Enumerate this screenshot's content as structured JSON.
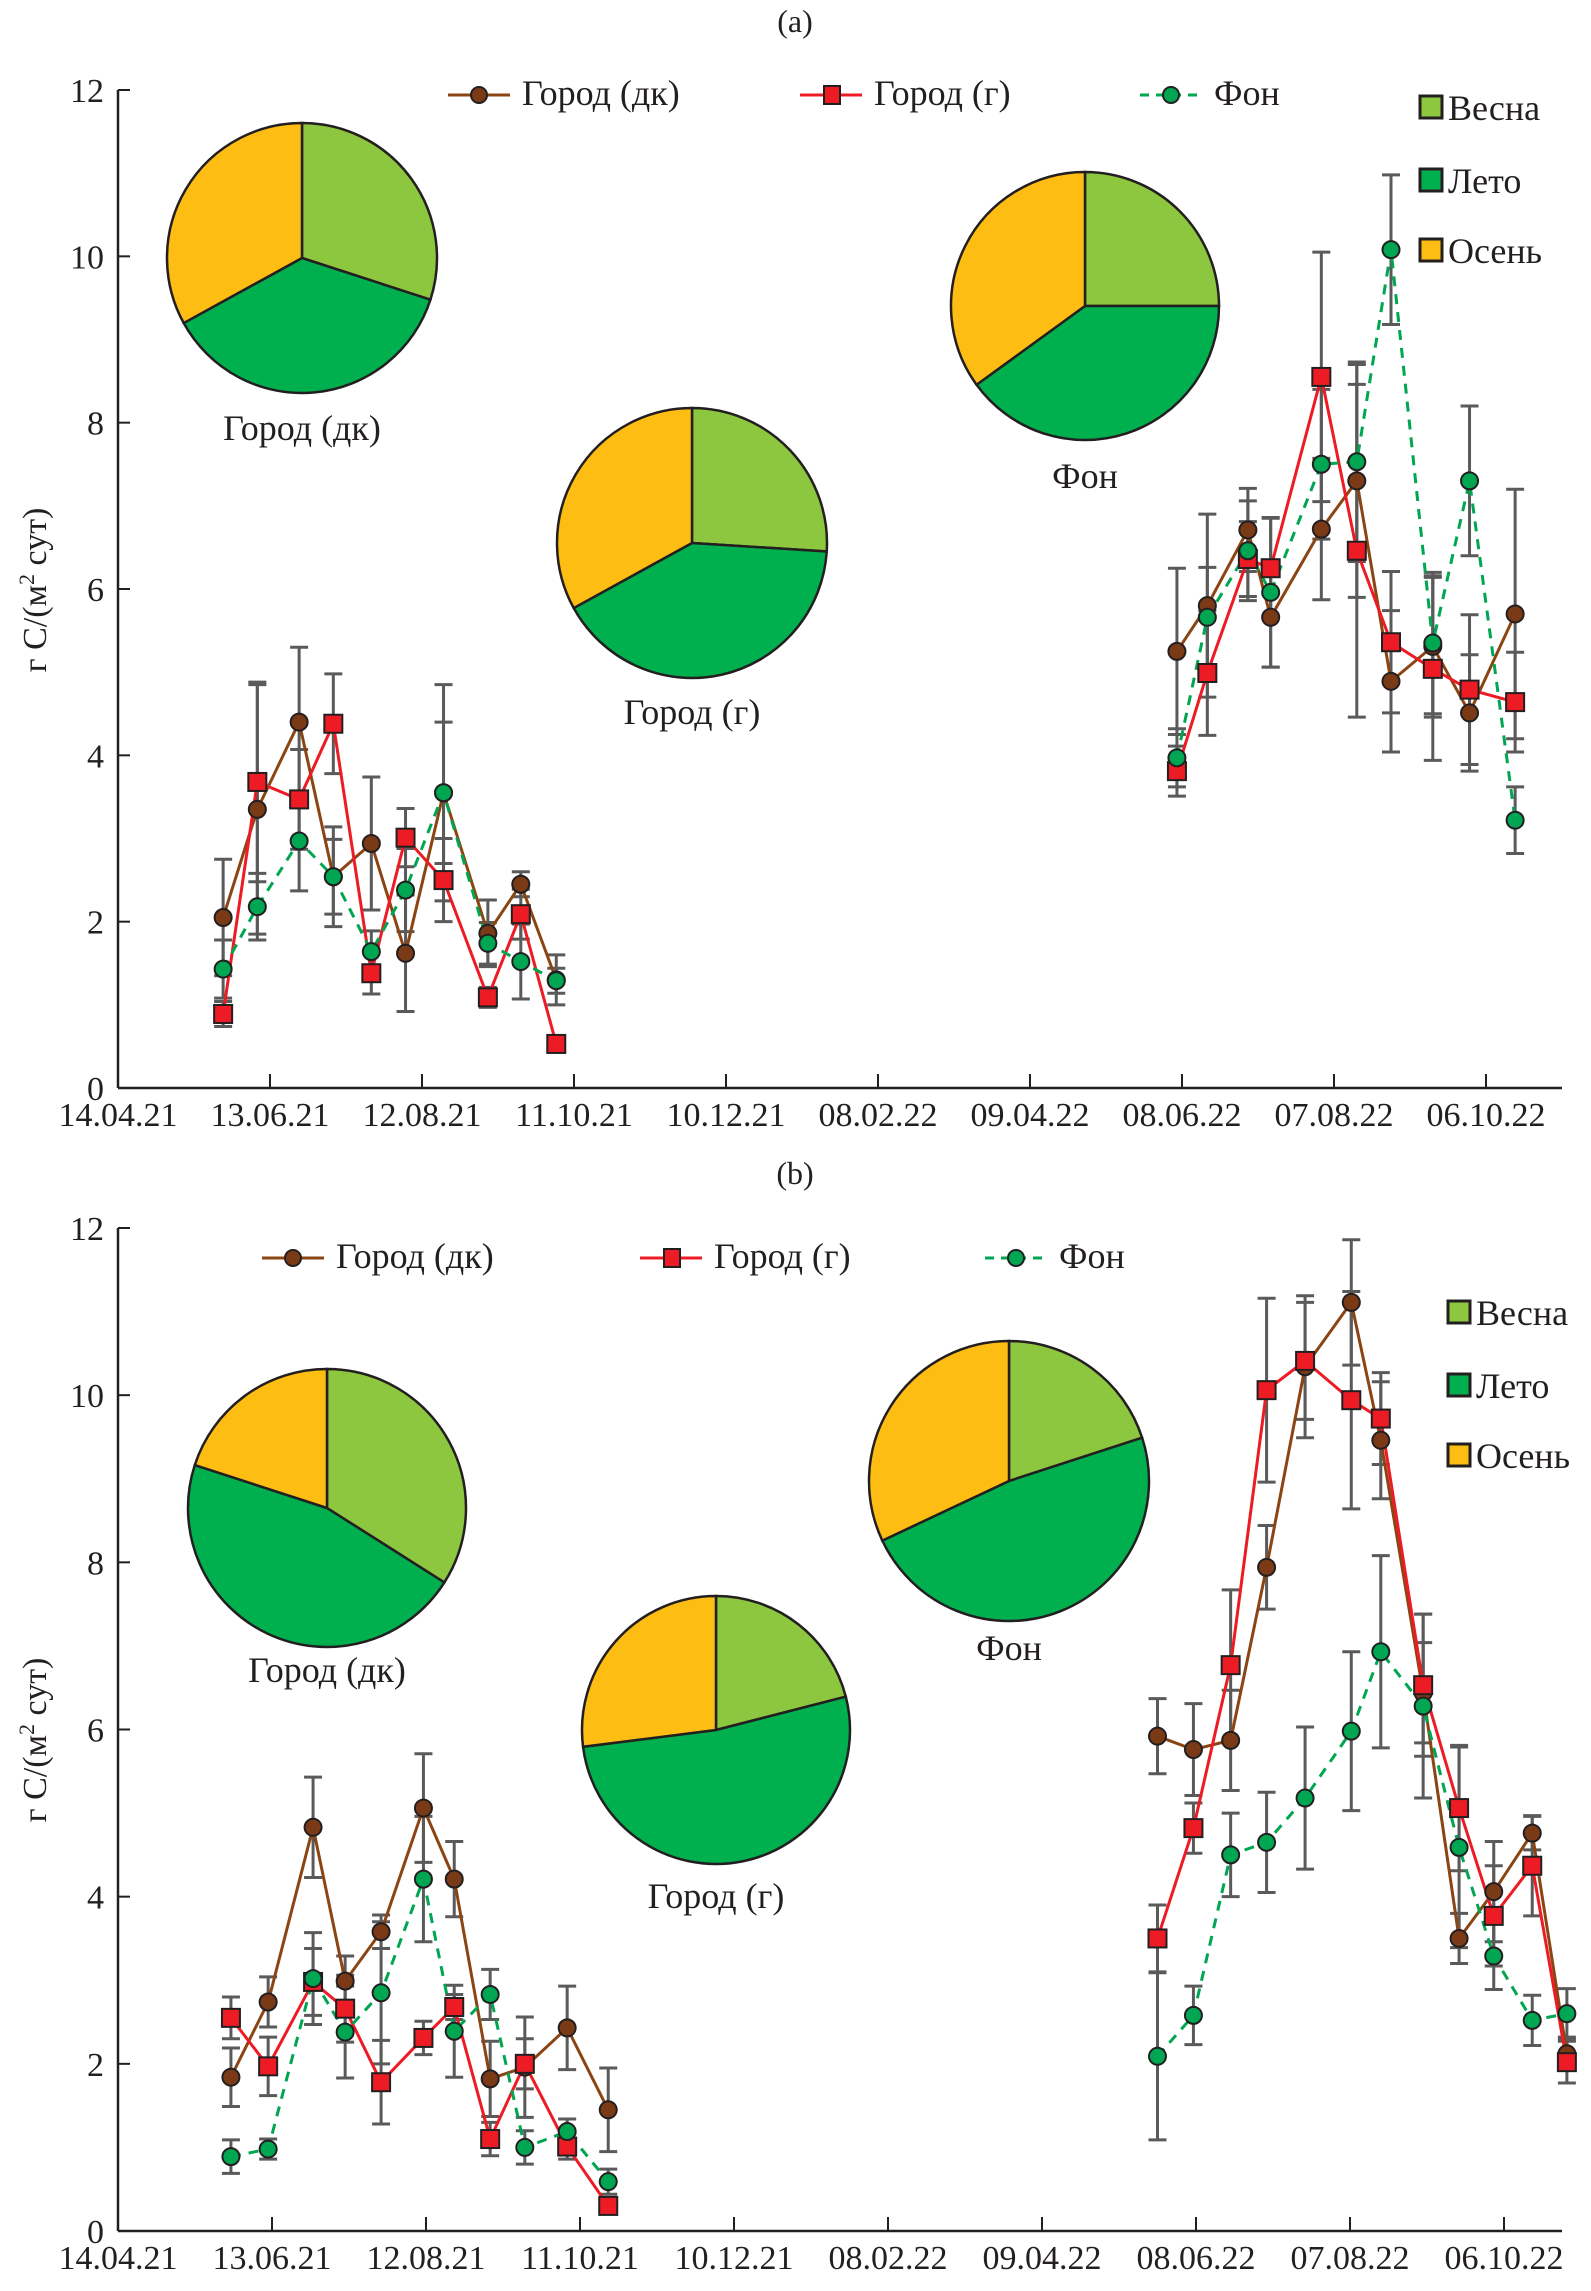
{
  "chart_data": [
    {
      "type": "line",
      "panel_title": "(a)",
      "ylabel": "г C/(м² сут)",
      "ylabel_parts": {
        "pre": "г C/(м",
        "sup": "2",
        "post": " сут)"
      },
      "xlabel": "",
      "ylim": [
        0,
        12
      ],
      "yticks": [
        0,
        2,
        4,
        6,
        8,
        10,
        12
      ],
      "x_unit": "days since 14.04.21",
      "xlim_days": [
        0,
        568
      ],
      "xticks": [
        {
          "day": 0,
          "label": "14.04.21"
        },
        {
          "day": 60,
          "label": "13.06.21"
        },
        {
          "day": 120,
          "label": "12.08.21"
        },
        {
          "day": 180,
          "label": "11.10.21"
        },
        {
          "day": 240,
          "label": "10.12.21"
        },
        {
          "day": 300,
          "label": "08.02.22"
        },
        {
          "day": 360,
          "label": "09.04.22"
        },
        {
          "day": 420,
          "label": "08.06.22"
        },
        {
          "day": 480,
          "label": "07.08.22"
        },
        {
          "day": 540,
          "label": "06.10.22"
        }
      ],
      "legend_position": "top",
      "series": [
        {
          "name": "Город (дк)",
          "color": "#8b4513",
          "marker": "circle",
          "dash": false,
          "segments": [
            {
              "x": [
                41.5,
                55,
                71.5,
                85,
                100,
                113.5,
                128.5,
                146,
                159,
                173
              ],
              "y": [
                2.05,
                3.35,
                4.4,
                2.54,
                2.94,
                1.62,
                3.55,
                1.86,
                2.45,
                1.3
              ],
              "err": [
                0.7,
                1.5,
                0.9,
                0.6,
                0.8,
                0.7,
                1.3,
                0.4,
                0.15,
                0.3
              ]
            },
            {
              "x": [
                418,
                430,
                446,
                455,
                475,
                489,
                502.5,
                519,
                533.5,
                551.5
              ],
              "y": [
                5.25,
                5.8,
                6.71,
                5.66,
                6.72,
                7.3,
                4.89,
                5.31,
                4.51,
                5.7
              ],
              "err": [
                1.0,
                1.1,
                0.5,
                0.6,
                0.85,
                1.4,
                0.85,
                0.85,
                0.7,
                1.5
              ]
            }
          ]
        },
        {
          "name": "Город (г)",
          "color": "#ed1c24",
          "marker": "square",
          "dash": false,
          "segments": [
            {
              "x": [
                41.5,
                55,
                71.5,
                85,
                100,
                113.5,
                128.5,
                146,
                159,
                173
              ],
              "y": [
                0.89,
                3.68,
                3.47,
                4.38,
                1.38,
                3.01,
                2.5,
                1.09,
                2.09,
                0.53
              ],
              "err": [
                0.15,
                1.2,
                0.6,
                0.6,
                0.25,
                0.35,
                0.5,
                0.12,
                0.3,
                0.1
              ]
            },
            {
              "x": [
                418,
                430,
                446,
                455,
                475,
                489,
                502.5,
                519,
                533.5,
                551.5
              ],
              "y": [
                3.81,
                4.99,
                6.36,
                6.25,
                8.55,
                6.46,
                5.36,
                5.04,
                4.79,
                4.64
              ],
              "err": [
                0.3,
                0.75,
                0.45,
                0.6,
                1.5,
                2.0,
                0.85,
                1.1,
                0.9,
                0.6
              ]
            }
          ]
        },
        {
          "name": "Фон",
          "color": "#00a651",
          "marker": "circle",
          "dash": true,
          "segments": [
            {
              "x": [
                41.5,
                55,
                71.5,
                85,
                100,
                113.5,
                128.5,
                146,
                159,
                173
              ],
              "y": [
                1.43,
                2.18,
                2.97,
                2.54,
                1.64,
                2.38,
                3.55,
                1.74,
                1.52,
                1.29
              ],
              "err": [
                0.35,
                0.4,
                0.6,
                0.45,
                0.25,
                0.5,
                0.85,
                0.25,
                0.45,
                0.15
              ]
            },
            {
              "x": [
                418,
                430,
                446,
                455,
                475,
                489,
                502.5,
                519,
                533.5,
                551.5
              ],
              "y": [
                3.97,
                5.66,
                6.46,
                5.96,
                7.5,
                7.53,
                10.08,
                5.35,
                7.3,
                3.22
              ],
              "err": [
                0.35,
                0.6,
                0.6,
                0.9,
                0.9,
                1.2,
                0.9,
                0.85,
                0.9,
                0.4
              ]
            }
          ]
        }
      ],
      "pie_legend": [
        {
          "label": "Весна",
          "color": "#8dc63f"
        },
        {
          "label": "Лето",
          "color": "#00b04f"
        },
        {
          "label": "Осень",
          "color": "#fdbd13"
        }
      ],
      "pies": [
        {
          "label": "Город (дк)",
          "shares": {
            "Весна": 30,
            "Лето": 37,
            "Осень": 33
          }
        },
        {
          "label": "Город (г)",
          "shares": {
            "Весна": 26,
            "Лето": 41,
            "Осень": 33
          }
        },
        {
          "label": "Фон",
          "shares": {
            "Весна": 25,
            "Лето": 40,
            "Осень": 35
          }
        }
      ]
    },
    {
      "type": "line",
      "panel_title": "(b)",
      "ylabel": "г C/(м² сут)",
      "ylabel_parts": {
        "pre": "г C/(м",
        "sup": "2",
        "post": " сут)"
      },
      "xlabel": "",
      "ylim": [
        0,
        12
      ],
      "yticks": [
        0,
        2,
        4,
        6,
        8,
        10,
        12
      ],
      "x_unit": "days since 14.04.21",
      "xlim_days": [
        0,
        568
      ],
      "xticks": [
        {
          "day": 0,
          "label": "14.04.21"
        },
        {
          "day": 60,
          "label": "13.06.21"
        },
        {
          "day": 120,
          "label": "12.08.21"
        },
        {
          "day": 180,
          "label": "11.10.21"
        },
        {
          "day": 240,
          "label": "10.12.21"
        },
        {
          "day": 300,
          "label": "08.02.22"
        },
        {
          "day": 360,
          "label": "09.04.22"
        },
        {
          "day": 420,
          "label": "08.06.22"
        },
        {
          "day": 480,
          "label": "07.08.22"
        },
        {
          "day": 540,
          "label": "06.10.22"
        }
      ],
      "legend_position": "top",
      "series": [
        {
          "name": "Город (дк)",
          "color": "#8b4513",
          "marker": "circle",
          "dash": false,
          "segments": [
            {
              "x": [
                44,
                58.5,
                76,
                88.5,
                102.5,
                119,
                131,
                145,
                158.5,
                175,
                191
              ],
              "y": [
                1.84,
                2.74,
                4.83,
                2.99,
                3.58,
                5.06,
                4.21,
                1.82,
                1.96,
                2.43,
                1.45
              ],
              "err": [
                0.35,
                0.3,
                0.6,
                0.3,
                0.2,
                0.65,
                0.45,
                0.45,
                0.6,
                0.5,
                0.5
              ]
            },
            {
              "x": [
                405,
                419,
                433.5,
                447.5,
                462.5,
                480.5,
                492,
                508.5,
                522.5,
                536,
                551,
                564.5
              ],
              "y": [
                5.92,
                5.76,
                5.87,
                7.94,
                10.34,
                11.11,
                9.46,
                6.44,
                3.5,
                4.06,
                4.76,
                2.12
              ],
              "err": [
                0.45,
                0.55,
                0.6,
                0.5,
                0.85,
                0.75,
                0.7,
                0.6,
                0.3,
                0.6,
                0.2,
                0.2
              ]
            }
          ]
        },
        {
          "name": "Город (г)",
          "color": "#ed1c24",
          "marker": "square",
          "dash": false,
          "segments": [
            {
              "x": [
                44,
                58.5,
                76,
                88.5,
                102.5,
                119,
                131,
                145,
                158.5,
                175,
                191
              ],
              "y": [
                2.55,
                1.97,
                2.98,
                2.66,
                1.78,
                2.31,
                2.68,
                1.1,
                2.0,
                1.01,
                0.3
              ],
              "err": [
                0.25,
                0.35,
                0.4,
                0.4,
                0.5,
                0.2,
                0.15,
                0.2,
                0.3,
                0.15,
                0.05
              ]
            },
            {
              "x": [
                405,
                419,
                433.5,
                447.5,
                462.5,
                480.5,
                492,
                508.5,
                522.5,
                536,
                551,
                564.5
              ],
              "y": [
                3.5,
                4.82,
                6.77,
                10.06,
                10.41,
                9.94,
                9.72,
                6.53,
                5.06,
                3.77,
                4.37,
                2.02
              ],
              "err": [
                0.4,
                0.3,
                0.9,
                1.1,
                0.7,
                1.3,
                0.55,
                0.85,
                0.75,
                0.6,
                0.6,
                0.25
              ]
            }
          ]
        },
        {
          "name": "Фон",
          "color": "#00a651",
          "marker": "circle",
          "dash": true,
          "segments": [
            {
              "x": [
                44,
                58.5,
                76,
                88.5,
                102.5,
                119,
                131,
                145,
                158.5,
                175,
                191
              ],
              "y": [
                0.89,
                0.98,
                3.02,
                2.38,
                2.85,
                4.21,
                2.39,
                2.83,
                1.0,
                1.19,
                0.59
              ],
              "err": [
                0.2,
                0.12,
                0.55,
                0.55,
                0.85,
                0.75,
                0.55,
                0.3,
                0.2,
                0.15,
                0.15
              ]
            },
            {
              "x": [
                405,
                419,
                433.5,
                447.5,
                462.5,
                480.5,
                492,
                508.5,
                522.5,
                536,
                551,
                564.5
              ],
              "y": [
                2.09,
                2.58,
                4.5,
                4.65,
                5.18,
                5.98,
                6.93,
                6.28,
                4.59,
                3.29,
                2.52,
                2.6
              ],
              "err": [
                1.0,
                0.35,
                0.5,
                0.6,
                0.85,
                0.95,
                1.15,
                1.1,
                1.2,
                0.4,
                0.3,
                0.3
              ]
            }
          ]
        }
      ],
      "pie_legend": [
        {
          "label": "Весна",
          "color": "#8dc63f"
        },
        {
          "label": "Лето",
          "color": "#00b04f"
        },
        {
          "label": "Осень",
          "color": "#fdbd13"
        }
      ],
      "pies": [
        {
          "label": "Город (дк)",
          "shares": {
            "Весна": 34,
            "Лето": 46,
            "Осень": 20
          }
        },
        {
          "label": "Город (г)",
          "shares": {
            "Весна": 21,
            "Лето": 52,
            "Осень": 27
          }
        },
        {
          "label": "Фон",
          "shares": {
            "Весна": 20,
            "Лето": 48,
            "Осень": 32
          }
        }
      ]
    }
  ]
}
